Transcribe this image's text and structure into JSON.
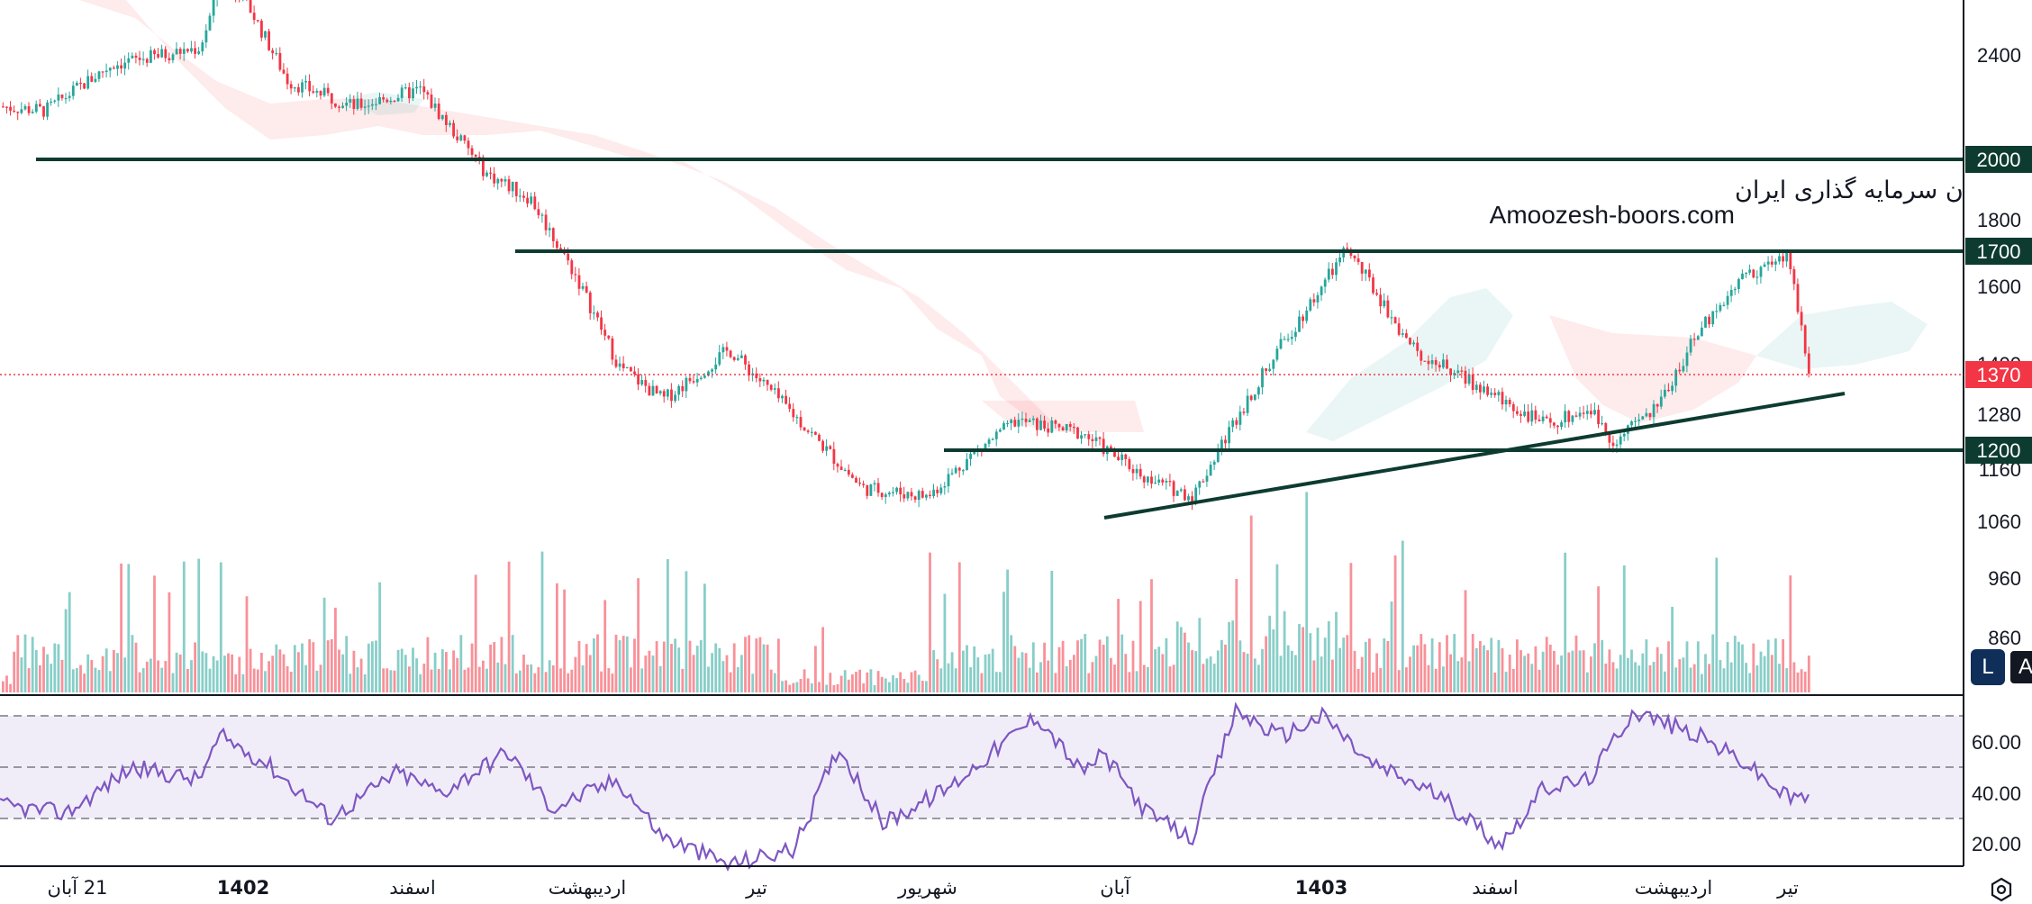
{
  "watermark": {
    "line1": "انجمن خبرگان سرمایه گذاری ایران",
    "line2": "Amoozesh-boors.com"
  },
  "price_axis": {
    "ticks": [
      "2400",
      "1800",
      "1600",
      "1400",
      "1280",
      "1160",
      "1060",
      "960",
      "860"
    ],
    "badges": [
      {
        "label": "2000",
        "color": "#0d3b30"
      },
      {
        "label": "1700",
        "color": "#0d3b30"
      },
      {
        "label": "1370",
        "color": "#f23645"
      },
      {
        "label": "1200",
        "color": "#0d3b30"
      }
    ]
  },
  "rsi_axis": {
    "ticks": [
      "60.00",
      "40.00",
      "20.00"
    ]
  },
  "date_axis": {
    "labels": [
      {
        "text": "21 آبان",
        "bold": false
      },
      {
        "text": "1402",
        "bold": true
      },
      {
        "text": "اسفند",
        "bold": false
      },
      {
        "text": "اردیبهشت",
        "bold": false
      },
      {
        "text": "تیر",
        "bold": false
      },
      {
        "text": "شهریور",
        "bold": false
      },
      {
        "text": "آبان",
        "bold": false
      },
      {
        "text": "1403",
        "bold": true
      },
      {
        "text": "اسفند",
        "bold": false
      },
      {
        "text": "اردیبهشت",
        "bold": false
      },
      {
        "text": "تیر",
        "bold": false
      }
    ]
  },
  "buttons": {
    "l_label": "L",
    "a_label": "A"
  },
  "colors": {
    "up": "#26a69a",
    "down": "#f23645",
    "rsi": "#7e57c2",
    "level": "#0d3b30"
  },
  "chart_data": {
    "type": "candlestick",
    "price_levels": [
      2000,
      1700,
      1200
    ],
    "last_price": 1370,
    "trendline": {
      "from": [
        1,
        1075
      ],
      "to": [
        8.8,
        1310
      ]
    },
    "price_path": {
      "x": [
        0,
        0.2,
        0.5,
        0.9,
        1.0,
        1.1,
        1.3,
        1.6,
        1.9,
        2.2,
        2.4,
        2.6,
        2.8,
        3.0,
        3.3,
        3.6,
        3.9,
        4.2,
        4.4,
        4.6,
        4.9,
        5.2,
        5.4,
        5.6,
        5.8,
        6.1,
        6.4,
        6.7,
        7.0,
        7.2,
        7.3,
        7.5,
        7.7,
        7.9,
        8.1,
        8.2
      ],
      "y": [
        2020,
        2010,
        2120,
        2160,
        2320,
        2280,
        2080,
        2020,
        2060,
        1860,
        1800,
        1620,
        1400,
        1320,
        1440,
        1280,
        1110,
        1090,
        1190,
        1270,
        1240,
        1130,
        1090,
        1280,
        1450,
        1680,
        1440,
        1350,
        1260,
        1300,
        1220,
        1300,
        1490,
        1620,
        1660,
        1370
      ]
    },
    "rsi_levels": [
      70,
      50,
      30
    ],
    "rsi_range": [
      10,
      80
    ],
    "rsi_path": {
      "x": [
        0,
        0.3,
        0.6,
        0.9,
        1.0,
        1.2,
        1.5,
        1.8,
        2.0,
        2.3,
        2.5,
        2.8,
        3.0,
        3.3,
        3.6,
        3.8,
        4.0,
        4.3,
        4.5,
        4.7,
        4.9,
        5.0,
        5.2,
        5.4,
        5.6,
        5.8,
        6.0,
        6.2,
        6.5,
        6.8,
        7.0,
        7.2,
        7.4,
        7.7,
        7.9,
        8.1,
        8.2
      ],
      "y": [
        35,
        32,
        50,
        45,
        62,
        52,
        30,
        48,
        40,
        56,
        34,
        45,
        23,
        12,
        18,
        58,
        28,
        42,
        56,
        70,
        48,
        55,
        32,
        22,
        72,
        62,
        70,
        52,
        40,
        20,
        42,
        45,
        72,
        62,
        52,
        38,
        38
      ]
    }
  }
}
